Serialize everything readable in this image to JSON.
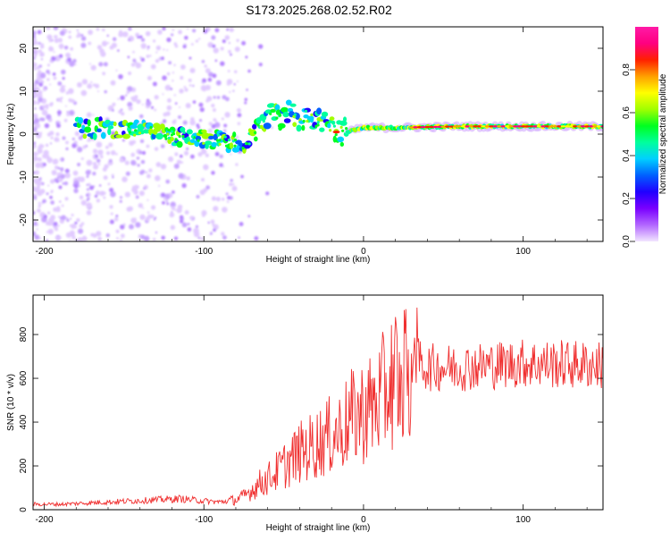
{
  "title": "S173.2025.268.02.52.R02",
  "chart_data": [
    {
      "type": "heatmap",
      "name": "spectrogram",
      "xlabel": "Height of straight line (km)",
      "ylabel": "Frequency (Hz)",
      "xlim": [
        -207,
        150
      ],
      "ylim": [
        -25,
        25
      ],
      "xticks": [
        -200,
        -100,
        0,
        100
      ],
      "yticks": [
        -20,
        -10,
        0,
        10,
        20
      ],
      "colorbar": {
        "label": "Normalized spectral amplitude",
        "range": [
          0,
          1
        ],
        "ticks": [
          "0.0",
          "0.2",
          "0.4",
          "0.6",
          "0.8"
        ],
        "colors": [
          "#f2e6ff",
          "#b266ff",
          "#7a00ff",
          "#2000ff",
          "#0060ff",
          "#00d0ff",
          "#00ff9c",
          "#00ff20",
          "#a0ff00",
          "#ffff00",
          "#ffa000",
          "#ff2000",
          "#ff0080",
          "#ff1aa6"
        ]
      },
      "signal_band": [
        {
          "x": -170,
          "f": 1.5
        },
        {
          "x": -150,
          "f": 1.0
        },
        {
          "x": -130,
          "f": 0.5
        },
        {
          "x": -110,
          "f": -1.0
        },
        {
          "x": -90,
          "f": -1.5
        },
        {
          "x": -75,
          "f": -2.5
        },
        {
          "x": -60,
          "f": 3.5
        },
        {
          "x": -45,
          "f": 5.0
        },
        {
          "x": -35,
          "f": 4.0
        },
        {
          "x": -25,
          "f": 1.5
        },
        {
          "x": -10,
          "f": 0.5
        },
        {
          "x": 0,
          "f": 1.5
        },
        {
          "x": 20,
          "f": 1.5
        },
        {
          "x": 60,
          "f": 1.8
        },
        {
          "x": 100,
          "f": 1.8
        },
        {
          "x": 150,
          "f": 1.8
        }
      ]
    },
    {
      "type": "line",
      "name": "snr",
      "xlabel": "Height of straight line (km)",
      "ylabel": "SNR (10 * v/v)",
      "xlim": [
        -207,
        150
      ],
      "ylim": [
        0,
        980
      ],
      "xticks": [
        -200,
        -100,
        0,
        100
      ],
      "yticks": [
        0,
        200,
        400,
        600,
        800
      ],
      "color": "#f03030",
      "series": [
        {
          "name": "SNR",
          "x": [
            -207,
            -190,
            -175,
            -160,
            -145,
            -130,
            -115,
            -100,
            -90,
            -80,
            -75,
            -70,
            -65,
            -60,
            -55,
            -50,
            -45,
            -40,
            -35,
            -30,
            -25,
            -20,
            -15,
            -10,
            -5,
            0,
            5,
            10,
            15,
            20,
            25,
            30,
            35,
            40,
            50,
            60,
            80,
            100,
            120,
            150
          ],
          "y": [
            25,
            25,
            30,
            35,
            40,
            45,
            50,
            40,
            35,
            45,
            60,
            90,
            120,
            140,
            170,
            200,
            230,
            260,
            280,
            300,
            320,
            340,
            360,
            400,
            430,
            450,
            470,
            500,
            560,
            620,
            660,
            680,
            670,
            650,
            650,
            650,
            660,
            670,
            665,
            660
          ]
        }
      ]
    }
  ]
}
